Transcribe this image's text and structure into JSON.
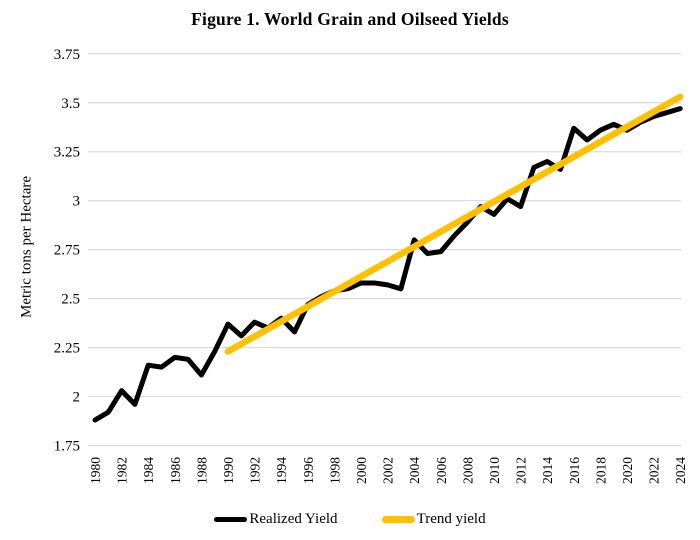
{
  "title": "Figure 1. World Grain and Oilseed Yields",
  "y_axis": {
    "label": "Metric tons per Hectare",
    "tick_labels": [
      "1.75",
      "2",
      "2.25",
      "2.5",
      "2.75",
      "3",
      "3.25",
      "3.5",
      "3.75"
    ]
  },
  "x_axis": {
    "tick_labels": [
      "1980",
      "1982",
      "1984",
      "1986",
      "1988",
      "1990",
      "1992",
      "1994",
      "1996",
      "1998",
      "2000",
      "2002",
      "2004",
      "2006",
      "2008",
      "2010",
      "2012",
      "2014",
      "2016",
      "2018",
      "2020",
      "2022",
      "2024"
    ]
  },
  "chart_data": {
    "type": "line",
    "title": "Figure 1. World Grain and Oilseed Yields",
    "xlabel": "",
    "ylabel": "Metric tons per Hectare",
    "ylim": [
      1.75,
      3.75
    ],
    "xlim": [
      1980,
      2024
    ],
    "ytick_step": 0.25,
    "xtick_step": 2,
    "grid": true,
    "grid_color": "#d9d9d9",
    "legend_position": "bottom",
    "series": [
      {
        "name": "Realized Yield",
        "color": "#000000",
        "x": [
          1980,
          1981,
          1982,
          1983,
          1984,
          1985,
          1986,
          1987,
          1988,
          1989,
          1990,
          1991,
          1992,
          1993,
          1994,
          1995,
          1996,
          1997,
          1998,
          1999,
          2000,
          2001,
          2002,
          2003,
          2004,
          2005,
          2006,
          2007,
          2008,
          2009,
          2010,
          2011,
          2012,
          2013,
          2014,
          2015,
          2016,
          2017,
          2018,
          2019,
          2020,
          2021,
          2022,
          2023,
          2024
        ],
        "y": [
          1.88,
          1.92,
          2.03,
          1.96,
          2.16,
          2.15,
          2.2,
          2.19,
          2.11,
          2.23,
          2.37,
          2.31,
          2.38,
          2.35,
          2.4,
          2.33,
          2.47,
          2.51,
          2.54,
          2.55,
          2.58,
          2.58,
          2.57,
          2.55,
          2.8,
          2.73,
          2.74,
          2.82,
          2.89,
          2.97,
          2.93,
          3.01,
          2.97,
          3.17,
          3.2,
          3.16,
          3.37,
          3.31,
          3.36,
          3.39,
          3.36,
          3.4,
          3.43,
          3.45,
          3.47
        ]
      },
      {
        "name": "Trend yield",
        "color": "#ffc000",
        "x": [
          1990,
          2024
        ],
        "y": [
          2.23,
          3.53
        ]
      }
    ]
  }
}
